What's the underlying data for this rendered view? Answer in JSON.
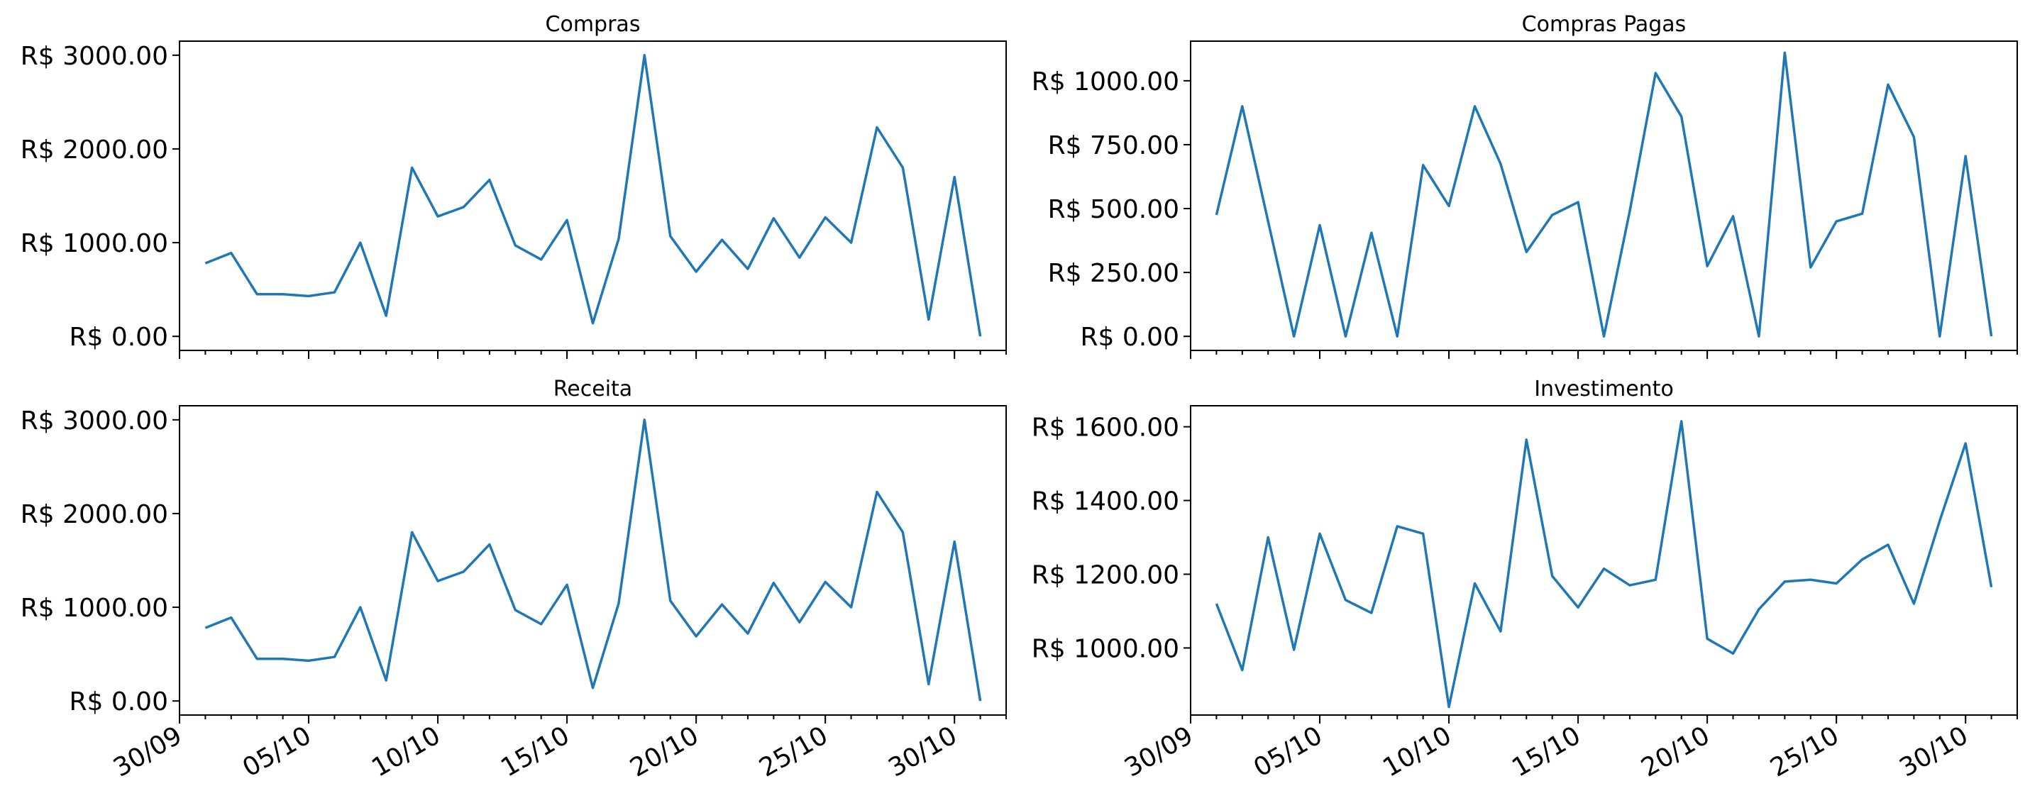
{
  "colors": {
    "line": "#1f77b4"
  },
  "shared_x": {
    "start": "2023-10-01",
    "end": "2023-10-31",
    "xlim": [
      "2023-09-30",
      "2023-11-01"
    ],
    "major_ticks": [
      "2023-09-30",
      "2023-10-05",
      "2023-10-10",
      "2023-10-15",
      "2023-10-20",
      "2023-10-25",
      "2023-10-30"
    ],
    "major_labels": [
      "30/09",
      "05/10",
      "10/10",
      "15/10",
      "20/10",
      "25/10",
      "30/10"
    ]
  },
  "chart_data": [
    {
      "type": "line",
      "title": "Compras",
      "ylim": [
        -150,
        3150
      ],
      "yticks": [
        0,
        1000,
        2000,
        3000
      ],
      "ytick_labels": [
        "R$ 0.00",
        "R$ 1000.00",
        "R$ 2000.00",
        "R$ 3000.00"
      ],
      "series": [
        {
          "values": [
            780,
            890,
            450,
            450,
            430,
            470,
            1000,
            220,
            1800,
            1280,
            1380,
            1670,
            970,
            820,
            1240,
            140,
            1040,
            3000,
            1070,
            690,
            1030,
            720,
            1260,
            840,
            1270,
            1000,
            2230,
            1800,
            180,
            1700,
            0
          ]
        }
      ]
    },
    {
      "type": "line",
      "title": "Compras Pagas",
      "ylim": [
        -55,
        1155
      ],
      "yticks": [
        0,
        250,
        500,
        750,
        1000
      ],
      "ytick_labels": [
        "R$ 0.00",
        "R$ 250.00",
        "R$ 500.00",
        "R$ 750.00",
        "R$ 1000.00"
      ],
      "series": [
        {
          "values": [
            475,
            900,
            450,
            0,
            435,
            0,
            405,
            0,
            670,
            510,
            900,
            675,
            330,
            475,
            525,
            0,
            490,
            1030,
            860,
            275,
            470,
            0,
            1110,
            270,
            450,
            480,
            985,
            780,
            0,
            705,
            0
          ]
        }
      ]
    },
    {
      "type": "line",
      "title": "Receita",
      "ylim": [
        -150,
        3150
      ],
      "yticks": [
        0,
        1000,
        2000,
        3000
      ],
      "ytick_labels": [
        "R$ 0.00",
        "R$ 1000.00",
        "R$ 2000.00",
        "R$ 3000.00"
      ],
      "series": [
        {
          "values": [
            780,
            890,
            450,
            450,
            430,
            470,
            1000,
            220,
            1800,
            1280,
            1380,
            1670,
            970,
            820,
            1240,
            140,
            1040,
            3000,
            1070,
            690,
            1030,
            720,
            1260,
            840,
            1270,
            1000,
            2230,
            1800,
            180,
            1700,
            0
          ]
        }
      ]
    },
    {
      "type": "line",
      "title": "Investimento",
      "ylim": [
        818,
        1657
      ],
      "yticks": [
        1000,
        1200,
        1400,
        1600
      ],
      "ytick_labels": [
        "R$ 1000.00",
        "R$ 1200.00",
        "R$ 1400.00",
        "R$ 1600.00"
      ],
      "series": [
        {
          "values": [
            1120,
            940,
            1300,
            995,
            1310,
            1130,
            1095,
            1330,
            1310,
            840,
            1175,
            1045,
            1565,
            1195,
            1110,
            1215,
            1170,
            1185,
            1615,
            1025,
            985,
            1105,
            1180,
            1185,
            1175,
            1240,
            1280,
            1120,
            1345,
            1555,
            1165
          ]
        }
      ]
    }
  ]
}
